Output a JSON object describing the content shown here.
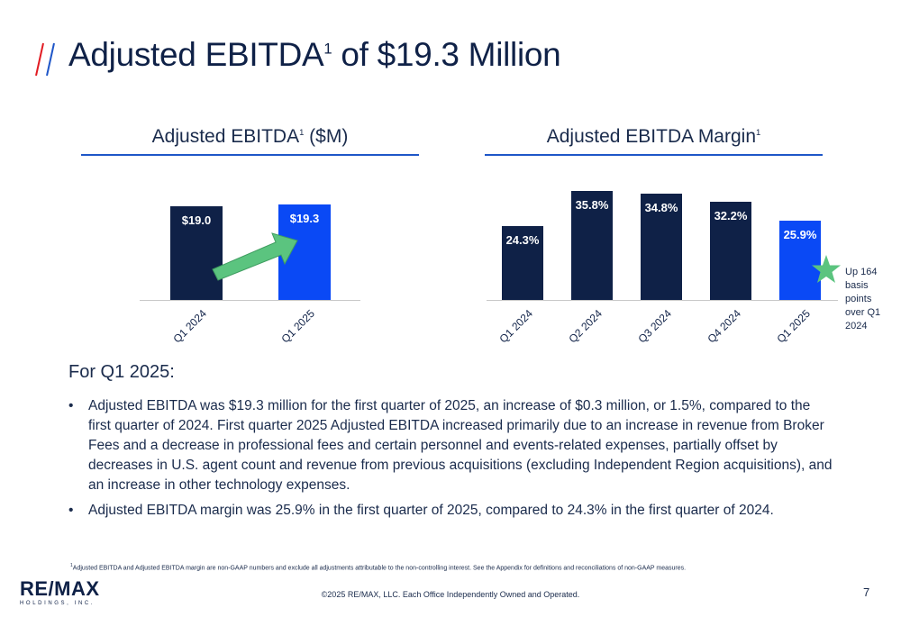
{
  "title": {
    "main": "Adjusted EBITDA",
    "sup": "1",
    "rest": " of $19.3 Million"
  },
  "colors": {
    "dark": "#0f2147",
    "highlight": "#0a49f5",
    "arrow": "#5bc47f",
    "star": "#5bc47f",
    "rule": "#1e56c8",
    "slash_red": "#e11b22",
    "slash_blue": "#1e56c8"
  },
  "chart_data": [
    {
      "type": "bar",
      "title": "Adjusted EBITDA",
      "title_sup": "1",
      "title_rest": " ($M)",
      "categories": [
        "Q1 2024",
        "Q1 2025"
      ],
      "values": [
        19.0,
        19.3
      ],
      "value_labels": [
        "$19.0",
        "$19.3"
      ],
      "highlight_index": 1,
      "annotation": "up-arrow"
    },
    {
      "type": "bar",
      "title": "Adjusted EBITDA Margin",
      "title_sup": "1",
      "categories": [
        "Q1 2024",
        "Q2 2024",
        "Q3 2024",
        "Q4 2024",
        "Q1 2025"
      ],
      "values": [
        24.3,
        35.8,
        34.8,
        32.2,
        25.9
      ],
      "value_labels": [
        "24.3%",
        "35.8%",
        "34.8%",
        "32.2%",
        "25.9%"
      ],
      "highlight_index": 4
    }
  ],
  "callout": {
    "lines": [
      "Up 164",
      "basis",
      "points",
      "over Q1",
      "2024"
    ],
    "icon": "star-icon"
  },
  "section": {
    "heading": "For Q1 2025:",
    "bullet_char": "•",
    "bullets": [
      "Adjusted EBITDA was $19.3 million for the first quarter of 2025, an increase of $0.3 million, or 1.5%, compared to the first quarter of 2024. First quarter 2025 Adjusted EBITDA increased primarily due to an increase in revenue from Broker Fees and a decrease in professional fees and certain personnel and events-related expenses, partially offset by decreases in U.S. agent count and revenue from previous acquisitions (excluding Independent Region acquisitions), and an increase in other technology expenses.",
      "Adjusted EBITDA margin was 25.9% in the first quarter of 2025, compared to 24.3% in the first quarter of 2024."
    ]
  },
  "footnote": {
    "sup": "1",
    "text": "Adjusted EBITDA and Adjusted EBITDA margin are non-GAAP numbers and exclude all adjustments attributable to the non-controlling interest. See the Appendix for definitions and reconciliations of non-GAAP measures."
  },
  "footer": {
    "logo_main": "RE/MAX",
    "logo_sub": "HOLDINGS, INC.",
    "copyright": "©2025 RE/MAX, LLC. Each Office Independently Owned and Operated.",
    "page_number": "7"
  }
}
